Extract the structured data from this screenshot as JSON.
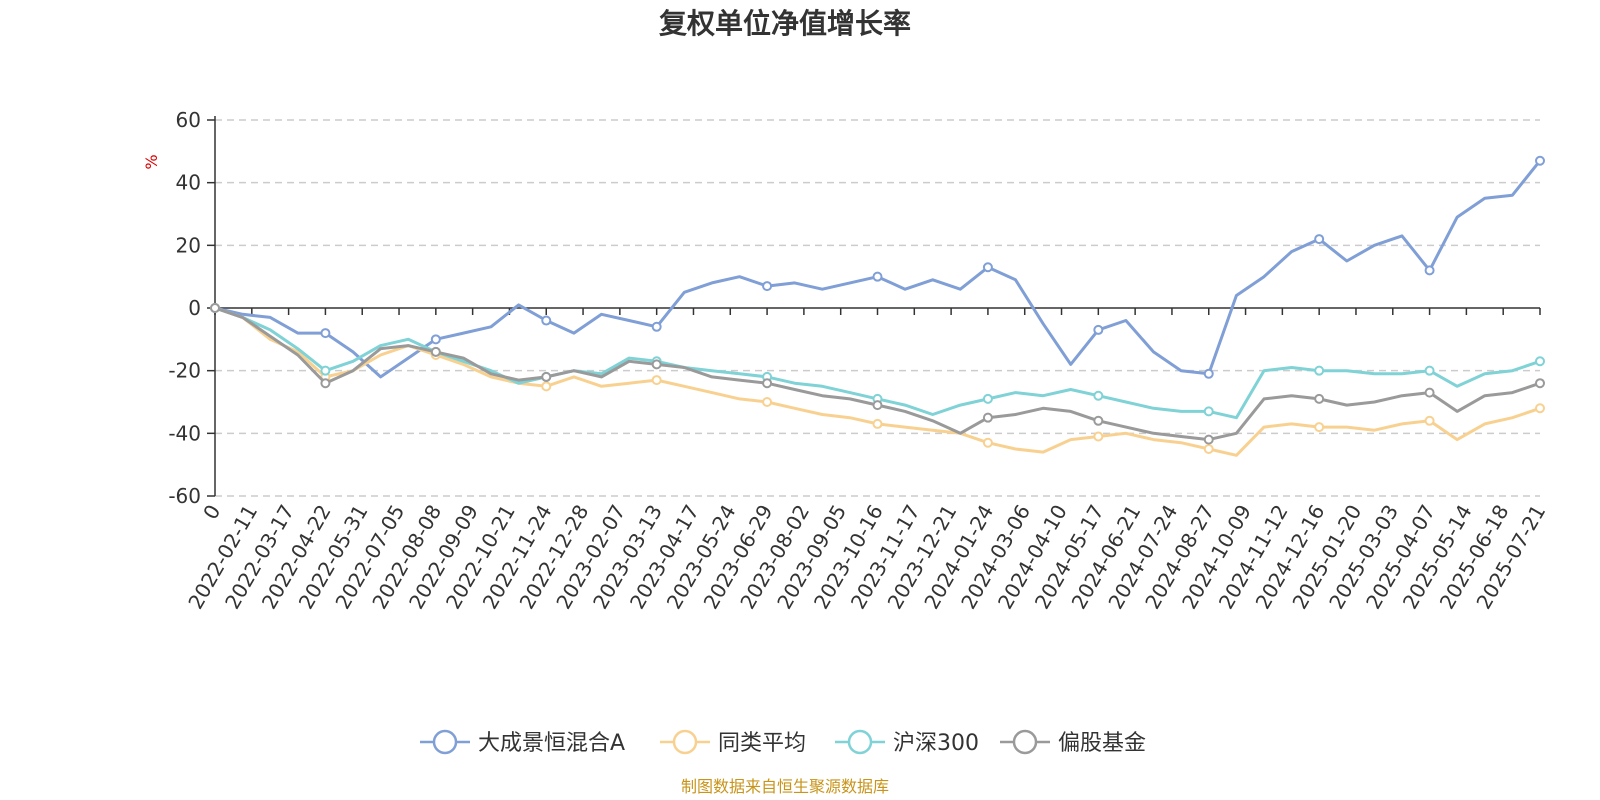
{
  "chart_data": {
    "type": "line",
    "title": "复权单位净值增长率",
    "ylabel": "%",
    "ylim": [
      -60,
      60
    ],
    "yticks": [
      60,
      40,
      20,
      0,
      -20,
      -40,
      -60
    ],
    "grid": true,
    "legend_position": "bottom",
    "source_note": "制图数据来自恒生聚源数据库",
    "x_tick_labels": [
      "0",
      "2022-02-11",
      "2022-03-17",
      "2022-04-22",
      "2022-05-31",
      "2022-07-05",
      "2022-08-08",
      "2022-09-09",
      "2022-10-21",
      "2022-11-24",
      "2022-12-28",
      "2023-02-07",
      "2023-03-13",
      "2023-04-17",
      "2023-05-24",
      "2023-06-29",
      "2023-08-02",
      "2023-09-05",
      "2023-10-16",
      "2023-11-17",
      "2023-12-21",
      "2024-01-24",
      "2024-03-06",
      "2024-04-10",
      "2024-05-17",
      "2024-06-21",
      "2024-07-24",
      "2024-08-27",
      "2024-10-09",
      "2024-11-12",
      "2024-12-16",
      "2025-01-20",
      "2025-03-03",
      "2025-04-07",
      "2025-05-14",
      "2025-06-18",
      "2025-07-21"
    ],
    "series": [
      {
        "name": "大成景恒混合A",
        "color": "#7f9fd6",
        "values": [
          0,
          -2,
          -3,
          -8,
          -8,
          -14,
          -22,
          -16,
          -10,
          -8,
          -6,
          1,
          -4,
          -8,
          -2,
          -4,
          -6,
          5,
          8,
          10,
          7,
          8,
          6,
          8,
          10,
          6,
          9,
          6,
          13,
          9,
          -5,
          -18,
          -7,
          -4,
          -14,
          -20,
          -21,
          4,
          10,
          18,
          22,
          15,
          20,
          23,
          12,
          29,
          35,
          36,
          47
        ]
      },
      {
        "name": "同类平均",
        "color": "#f8d191",
        "values": [
          0,
          -3,
          -10,
          -14,
          -22,
          -20,
          -15,
          -12,
          -15,
          -18,
          -22,
          -24,
          -25,
          -22,
          -25,
          -24,
          -23,
          -25,
          -27,
          -29,
          -30,
          -32,
          -34,
          -35,
          -37,
          -38,
          -39,
          -40,
          -43,
          -45,
          -46,
          -42,
          -41,
          -40,
          -42,
          -43,
          -45,
          -47,
          -38,
          -37,
          -38,
          -38,
          -39,
          -37,
          -36,
          -42,
          -37,
          -35,
          -32
        ]
      },
      {
        "name": "沪深300",
        "color": "#7fd2d5",
        "values": [
          0,
          -3,
          -7,
          -13,
          -20,
          -17,
          -12,
          -10,
          -14,
          -17,
          -20,
          -24,
          -22,
          -20,
          -21,
          -16,
          -17,
          -19,
          -20,
          -21,
          -22,
          -24,
          -25,
          -27,
          -29,
          -31,
          -34,
          -31,
          -29,
          -27,
          -28,
          -26,
          -28,
          -30,
          -32,
          -33,
          -33,
          -35,
          -20,
          -19,
          -20,
          -20,
          -21,
          -21,
          -20,
          -25,
          -21,
          -20,
          -17
        ]
      },
      {
        "name": "偏股基金",
        "color": "#9a9a9a",
        "values": [
          0,
          -3,
          -9,
          -15,
          -24,
          -20,
          -13,
          -12,
          -14,
          -16,
          -21,
          -23,
          -22,
          -20,
          -22,
          -17,
          -18,
          -19,
          -22,
          -23,
          -24,
          -26,
          -28,
          -29,
          -31,
          -33,
          -36,
          -40,
          -35,
          -34,
          -32,
          -33,
          -36,
          -38,
          -40,
          -41,
          -42,
          -40,
          -29,
          -28,
          -29,
          -31,
          -30,
          -28,
          -27,
          -33,
          -28,
          -27,
          -24
        ]
      }
    ]
  }
}
